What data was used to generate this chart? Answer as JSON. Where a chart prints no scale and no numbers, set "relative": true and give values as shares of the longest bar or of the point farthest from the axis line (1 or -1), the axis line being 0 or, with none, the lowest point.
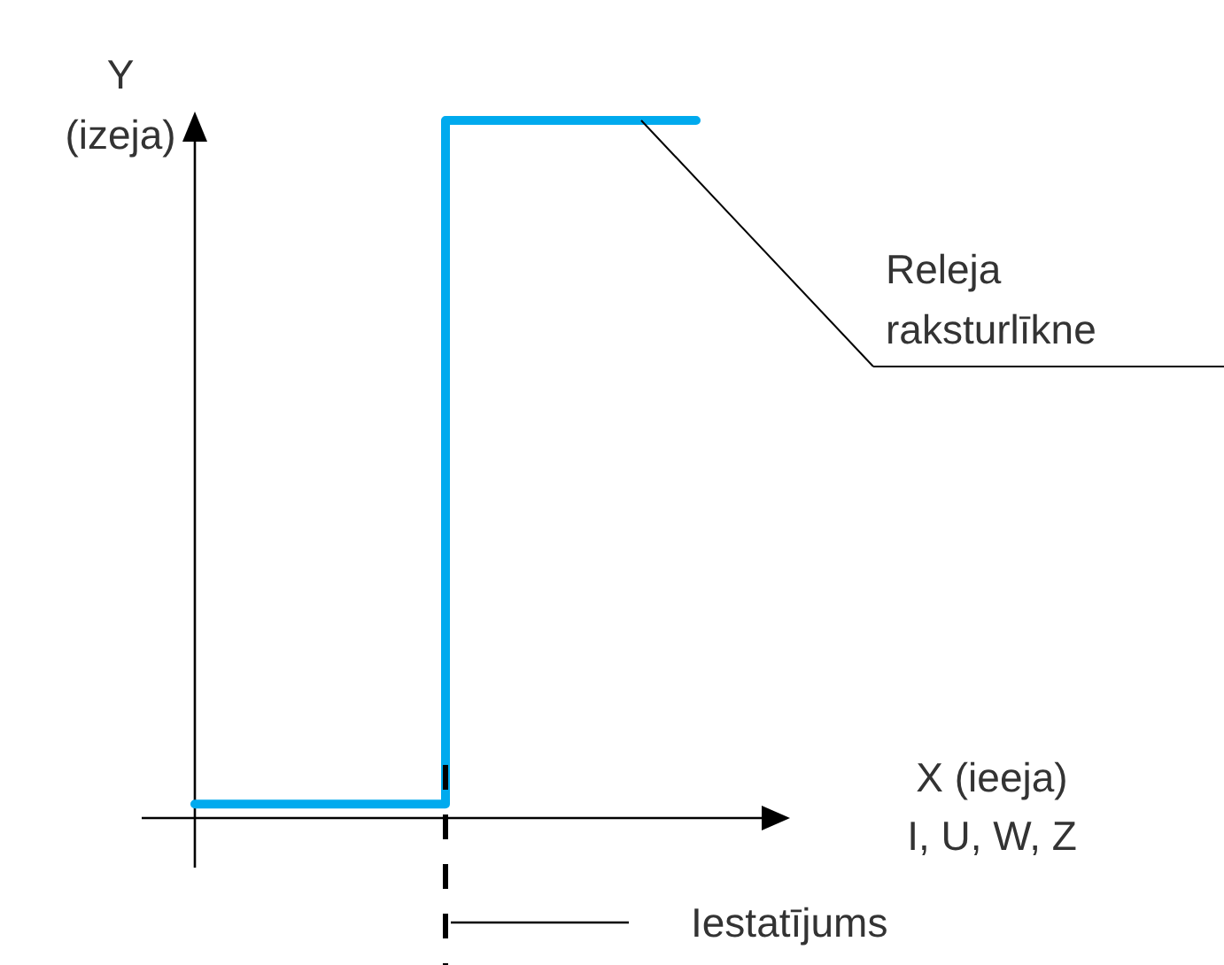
{
  "chart_data": {
    "type": "step",
    "relative": true,
    "xlabel": "X (ieeja)\nI, U, W, Z",
    "ylabel": "Y\n(izeja)",
    "categories": [
      null,
      null,
      null
    ],
    "series": [
      {
        "color": "#00aaee",
        "values": [
          0.02,
          1,
          1
        ]
      }
    ],
    "annotations": [
      "Releja\nraksturlīkne",
      "Iestatījums"
    ],
    "grid": false,
    "marker": "none",
    "line_style": "solid"
  }
}
